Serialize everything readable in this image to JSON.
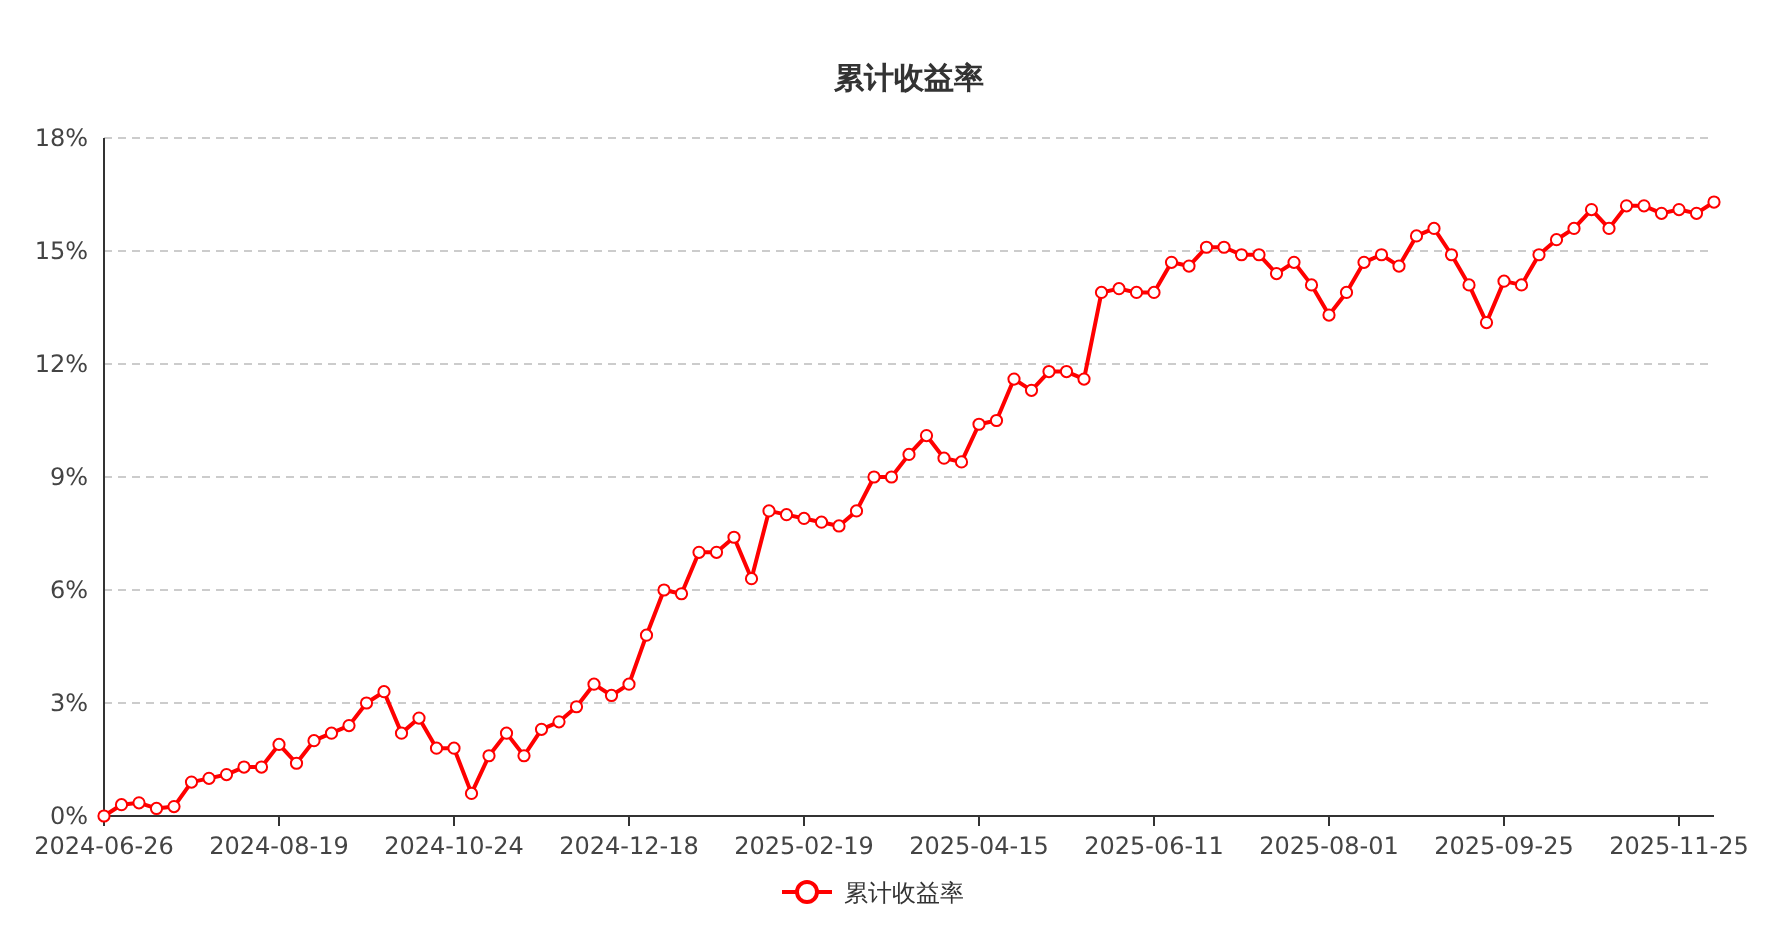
{
  "chart_data": {
    "type": "line",
    "title": "累计收益率",
    "categories": [
      "2024-06-26",
      null,
      null,
      null,
      null,
      null,
      null,
      null,
      null,
      null,
      "2024-08-19",
      null,
      null,
      null,
      null,
      null,
      null,
      null,
      null,
      null,
      "2024-10-24",
      null,
      null,
      null,
      null,
      null,
      null,
      null,
      null,
      null,
      "2024-12-18",
      null,
      null,
      null,
      null,
      null,
      null,
      null,
      null,
      null,
      "2025-02-19",
      null,
      null,
      null,
      null,
      null,
      null,
      null,
      null,
      null,
      "2025-04-15",
      null,
      null,
      null,
      null,
      null,
      null,
      null,
      null,
      null,
      "2025-06-11",
      null,
      null,
      null,
      null,
      null,
      null,
      null,
      null,
      null,
      "2025-08-01",
      null,
      null,
      null,
      null,
      null,
      null,
      null,
      null,
      null,
      "2025-09-25",
      null,
      null,
      null,
      null,
      null,
      null,
      null,
      null,
      null,
      "2025-11-25",
      null,
      null
    ],
    "series": [
      {
        "name": "累计收益率",
        "color": "#ff0000",
        "values": [
          0,
          0.3,
          0.35,
          0.2,
          0.25,
          0.9,
          1.0,
          1.1,
          1.3,
          1.3,
          1.9,
          1.4,
          2.0,
          2.2,
          2.4,
          3.0,
          3.3,
          2.2,
          2.6,
          1.8,
          1.8,
          0.6,
          1.6,
          2.2,
          1.6,
          2.3,
          2.5,
          2.9,
          3.5,
          3.2,
          3.5,
          4.8,
          6.0,
          5.9,
          7.0,
          7.0,
          7.4,
          6.3,
          8.1,
          8.0,
          7.9,
          7.8,
          7.7,
          8.1,
          9.0,
          9.0,
          9.6,
          10.1,
          9.5,
          9.4,
          10.4,
          10.5,
          11.6,
          11.3,
          11.8,
          11.8,
          11.6,
          13.9,
          14.0,
          13.9,
          13.9,
          14.7,
          14.6,
          15.1,
          15.1,
          14.9,
          14.9,
          14.4,
          14.7,
          14.1,
          13.3,
          13.9,
          14.7,
          14.9,
          14.6,
          15.4,
          15.6,
          14.9,
          14.1,
          13.1,
          14.2,
          14.1,
          14.9,
          15.3,
          15.6,
          16.1,
          15.6,
          16.2,
          16.2,
          16.0,
          16.1,
          16.0,
          16.3
        ]
      }
    ],
    "ylim": [
      0,
      18
    ],
    "yticks": [
      {
        "value": 0,
        "label": "0%"
      },
      {
        "value": 3,
        "label": "3%"
      },
      {
        "value": 6,
        "label": "6%"
      },
      {
        "value": 9,
        "label": "9%"
      },
      {
        "value": 12,
        "label": "12%"
      },
      {
        "value": 15,
        "label": "15%"
      },
      {
        "value": 18,
        "label": "18%"
      }
    ],
    "grid": "y",
    "legend": "bottom",
    "marker": "circle",
    "line_style": "solid"
  }
}
